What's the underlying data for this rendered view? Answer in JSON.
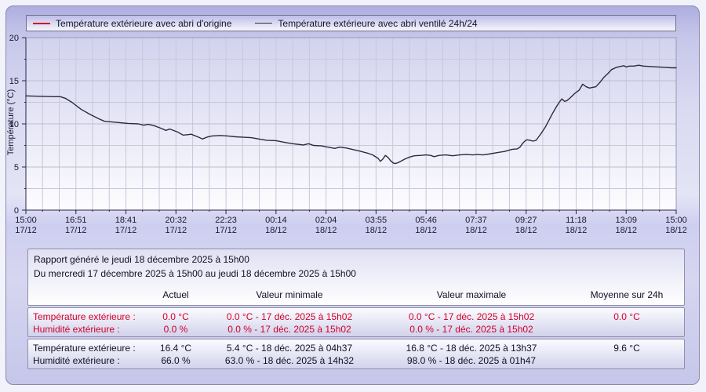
{
  "colors": {
    "accent_red": "#d10028",
    "curve_dark": "#2b2b3d",
    "box_border": "#8f8fae",
    "panel_border": "#8a8ab0",
    "grid_line": "#c7c7dc",
    "axis_dark": "#26264a"
  },
  "chart_data": {
    "type": "line",
    "title": "",
    "xlabel": "",
    "ylabel": "Température (°C)",
    "ylim": [
      0,
      20
    ],
    "yticks": [
      0,
      5,
      10,
      15,
      20
    ],
    "grid": "on",
    "legend_position": "top",
    "x_unit": "minutes since 17/12 15:00",
    "xticks": [
      {
        "time": "15:00",
        "date": "17/12",
        "minutes": 0
      },
      {
        "time": "16:51",
        "date": "17/12",
        "minutes": 111
      },
      {
        "time": "18:41",
        "date": "17/12",
        "minutes": 221
      },
      {
        "time": "20:32",
        "date": "17/12",
        "minutes": 332
      },
      {
        "time": "22:23",
        "date": "17/12",
        "minutes": 443
      },
      {
        "time": "00:14",
        "date": "18/12",
        "minutes": 554
      },
      {
        "time": "02:04",
        "date": "18/12",
        "minutes": 664
      },
      {
        "time": "03:55",
        "date": "18/12",
        "minutes": 775
      },
      {
        "time": "05:46",
        "date": "18/12",
        "minutes": 886
      },
      {
        "time": "07:37",
        "date": "18/12",
        "minutes": 997
      },
      {
        "time": "09:27",
        "date": "18/12",
        "minutes": 1107
      },
      {
        "time": "11:18",
        "date": "18/12",
        "minutes": 1218
      },
      {
        "time": "13:09",
        "date": "18/12",
        "minutes": 1329
      },
      {
        "time": "15:00",
        "date": "18/12",
        "minutes": 1440
      }
    ],
    "series": [
      {
        "name": "Température extérieure avec abri d'origine",
        "color": "#d10028",
        "note": "constant 0.0 °C over the whole period (line lies on the x-axis)",
        "points": [
          [
            0,
            0
          ],
          [
            1440,
            0
          ]
        ]
      },
      {
        "name": "Température extérieure avec abri ventilé 24h/24",
        "color": "#2b2b3d",
        "points": [
          [
            0,
            13.25
          ],
          [
            30,
            13.2
          ],
          [
            60,
            13.15
          ],
          [
            76,
            13.15
          ],
          [
            88,
            12.95
          ],
          [
            102,
            12.5
          ],
          [
            122,
            11.7
          ],
          [
            142,
            11.1
          ],
          [
            163,
            10.55
          ],
          [
            174,
            10.3
          ],
          [
            186,
            10.25
          ],
          [
            205,
            10.15
          ],
          [
            226,
            10.05
          ],
          [
            249,
            10.0
          ],
          [
            261,
            9.85
          ],
          [
            271,
            9.95
          ],
          [
            283,
            9.8
          ],
          [
            296,
            9.55
          ],
          [
            310,
            9.25
          ],
          [
            319,
            9.4
          ],
          [
            336,
            9.05
          ],
          [
            348,
            8.7
          ],
          [
            358,
            8.75
          ],
          [
            366,
            8.8
          ],
          [
            383,
            8.45
          ],
          [
            391,
            8.25
          ],
          [
            400,
            8.45
          ],
          [
            412,
            8.6
          ],
          [
            430,
            8.65
          ],
          [
            447,
            8.6
          ],
          [
            465,
            8.5
          ],
          [
            482,
            8.45
          ],
          [
            499,
            8.4
          ],
          [
            516,
            8.25
          ],
          [
            533,
            8.1
          ],
          [
            554,
            8.05
          ],
          [
            574,
            7.85
          ],
          [
            591,
            7.7
          ],
          [
            614,
            7.55
          ],
          [
            626,
            7.7
          ],
          [
            637,
            7.5
          ],
          [
            655,
            7.45
          ],
          [
            664,
            7.35
          ],
          [
            684,
            7.15
          ],
          [
            695,
            7.3
          ],
          [
            710,
            7.2
          ],
          [
            722,
            7.05
          ],
          [
            739,
            6.85
          ],
          [
            757,
            6.6
          ],
          [
            768,
            6.4
          ],
          [
            780,
            6.0
          ],
          [
            785,
            5.65
          ],
          [
            790,
            5.9
          ],
          [
            796,
            6.35
          ],
          [
            802,
            6.1
          ],
          [
            808,
            5.7
          ],
          [
            814,
            5.45
          ],
          [
            818,
            5.4
          ],
          [
            824,
            5.5
          ],
          [
            830,
            5.65
          ],
          [
            840,
            5.95
          ],
          [
            850,
            6.15
          ],
          [
            860,
            6.3
          ],
          [
            875,
            6.35
          ],
          [
            886,
            6.4
          ],
          [
            896,
            6.35
          ],
          [
            904,
            6.2
          ],
          [
            915,
            6.35
          ],
          [
            930,
            6.4
          ],
          [
            945,
            6.3
          ],
          [
            960,
            6.4
          ],
          [
            975,
            6.45
          ],
          [
            990,
            6.4
          ],
          [
            1000,
            6.45
          ],
          [
            1012,
            6.4
          ],
          [
            1025,
            6.5
          ],
          [
            1042,
            6.65
          ],
          [
            1060,
            6.8
          ],
          [
            1077,
            7.05
          ],
          [
            1088,
            7.1
          ],
          [
            1094,
            7.3
          ],
          [
            1100,
            7.75
          ],
          [
            1106,
            8.05
          ],
          [
            1110,
            8.15
          ],
          [
            1116,
            8.1
          ],
          [
            1123,
            8.0
          ],
          [
            1130,
            8.1
          ],
          [
            1141,
            8.9
          ],
          [
            1150,
            9.6
          ],
          [
            1158,
            10.4
          ],
          [
            1166,
            11.2
          ],
          [
            1175,
            12.0
          ],
          [
            1181,
            12.5
          ],
          [
            1187,
            12.9
          ],
          [
            1193,
            12.6
          ],
          [
            1198,
            12.7
          ],
          [
            1205,
            13.0
          ],
          [
            1216,
            13.55
          ],
          [
            1225,
            13.9
          ],
          [
            1233,
            14.6
          ],
          [
            1241,
            14.3
          ],
          [
            1248,
            14.15
          ],
          [
            1256,
            14.25
          ],
          [
            1262,
            14.3
          ],
          [
            1271,
            14.8
          ],
          [
            1280,
            15.4
          ],
          [
            1290,
            15.9
          ],
          [
            1297,
            16.3
          ],
          [
            1308,
            16.55
          ],
          [
            1315,
            16.65
          ],
          [
            1324,
            16.75
          ],
          [
            1329,
            16.6
          ],
          [
            1336,
            16.7
          ],
          [
            1346,
            16.7
          ],
          [
            1357,
            16.8
          ],
          [
            1368,
            16.7
          ],
          [
            1384,
            16.65
          ],
          [
            1400,
            16.6
          ],
          [
            1415,
            16.55
          ],
          [
            1430,
            16.5
          ],
          [
            1440,
            16.5
          ]
        ]
      }
    ]
  },
  "report": {
    "generated_line": "Rapport généré le jeudi 18 décembre 2025 à 15h00",
    "period_line": "Du mercredi 17 décembre 2025 à 15h00 au jeudi 18 décembre 2025 à 15h00",
    "columns": [
      "Actuel",
      "Valeur minimale",
      "Valeur maximale",
      "Moyenne sur 24h"
    ],
    "red_rows": [
      {
        "label": "Température extérieure :",
        "actuel": "0.0 °C",
        "min": "0.0 °C - 17 déc. 2025 à 15h02",
        "max": "0.0 °C - 17 déc. 2025 à 15h02",
        "avg": "0.0 °C"
      },
      {
        "label": "Humidité extérieure :",
        "actuel": "0.0 %",
        "min": "0.0 % - 17 déc. 2025 à 15h02",
        "max": "0.0 % - 17 déc. 2025 à 15h02",
        "avg": ""
      }
    ],
    "black_rows": [
      {
        "label": "Température extérieure :",
        "actuel": "16.4 °C",
        "min": "5.4 °C - 18 déc. 2025 à 04h37",
        "max": "16.8 °C - 18 déc. 2025 à 13h37",
        "avg": "9.6 °C"
      },
      {
        "label": "Humidité extérieure :",
        "actuel": "66.0 %",
        "min": "63.0 % - 18 déc. 2025 à 14h32",
        "max": "98.0 % - 18 déc. 2025 à 01h47",
        "avg": ""
      }
    ]
  }
}
